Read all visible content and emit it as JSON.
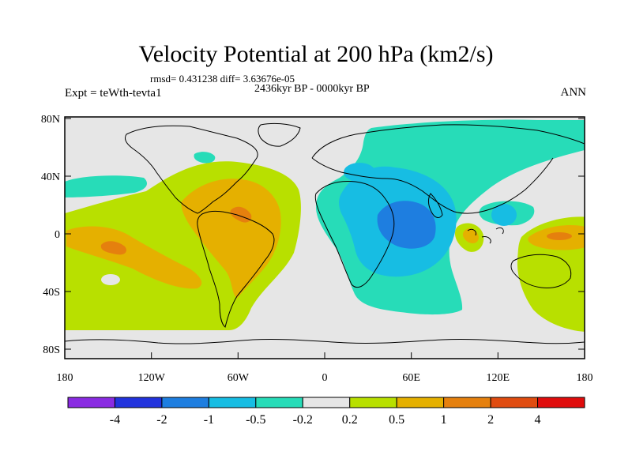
{
  "title": "Velocity Potential at 200 hPa (km2/s)",
  "stats_line": "rmsd= 0.431238 diff= 3.63676e-05",
  "experiment_label": "Expt = teWth-tevta1",
  "period_label": "2436kyr BP - 0000kyr BP",
  "season_label": "ANN",
  "axes": {
    "lon_ticks": [
      "180",
      "120W",
      "60W",
      "0",
      "60E",
      "120E",
      "180"
    ],
    "lat_ticks": [
      "80N",
      "40N",
      "0",
      "40S",
      "80S"
    ]
  },
  "colorbar": {
    "labels": [
      "-4",
      "-2",
      "-1",
      "-0.5",
      "-0.2",
      "0.2",
      "0.5",
      "1",
      "2",
      "4"
    ],
    "colors": [
      "#8a2be2",
      "#2233dd",
      "#1e7ee0",
      "#17bde3",
      "#27dcb8",
      "#e6e6e6",
      "#b8e000",
      "#e5b000",
      "#e5800e",
      "#e04c10",
      "#e00c0c"
    ]
  },
  "fill_colors": {
    "neutral": "#e6e6e6",
    "pos_02": "#b8e000",
    "pos_05": "#e5b000",
    "pos_1": "#e5800e",
    "neg_02": "#27dcb8",
    "neg_05": "#17bde3",
    "neg_1": "#1e7ee0"
  }
}
